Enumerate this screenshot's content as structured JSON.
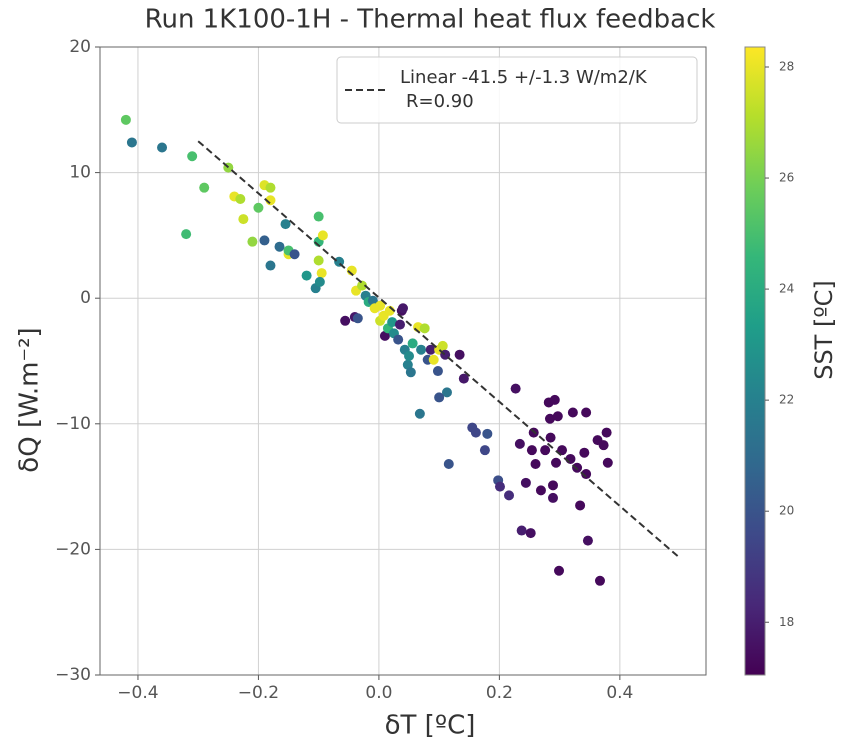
{
  "chart_data": {
    "type": "scatter",
    "title": "Run 1K100-1H - Thermal heat flux feedback",
    "x_label": "δT [ºC]",
    "y_label": "δQ [W.m⁻²]",
    "colorbar_label": "SST [ºC]",
    "grid": true,
    "legend": "upper right",
    "colormap": [
      "#440154",
      "#482878",
      "#3e4989",
      "#31688e",
      "#26828e",
      "#1f9e89",
      "#35b779",
      "#6ece58",
      "#b5de2b",
      "#fde725"
    ],
    "xlim": [
      -0.463,
      0.543
    ],
    "ylim": [
      -30,
      20
    ],
    "clim": [
      17.05,
      28.36
    ],
    "xticks": [
      {
        "value": -0.4,
        "label": "−0.4"
      },
      {
        "value": -0.2,
        "label": "−0.2"
      },
      {
        "value": 0,
        "label": "0.0"
      },
      0.2,
      0.4
    ],
    "yticks": [
      {
        "value": -30,
        "label": "−30"
      },
      {
        "value": -20,
        "label": "−20"
      },
      {
        "value": -10,
        "label": "−10"
      },
      0,
      10,
      20
    ],
    "cticks": [
      18,
      20,
      22,
      24,
      26,
      28
    ],
    "fit": {
      "label": [
        "Linear -41.5 +/-1.3 W/m2/K",
        "R=0.90"
      ],
      "color": "#333333",
      "x": [
        -0.3,
        0.5
      ],
      "y": [
        12.5,
        -20.7
      ]
    },
    "x": [
      -0.42,
      -0.41,
      -0.36,
      -0.31,
      -0.32,
      -0.29,
      -0.25,
      -0.24,
      -0.23,
      -0.225,
      -0.21,
      -0.2,
      -0.19,
      -0.18,
      -0.18,
      -0.19,
      -0.18,
      -0.165,
      -0.155,
      -0.15,
      -0.15,
      -0.14,
      -0.12,
      -0.1,
      -0.1,
      -0.1,
      -0.095,
      -0.093,
      -0.105,
      -0.098,
      -0.066,
      -0.056,
      -0.04,
      -0.045,
      -0.038,
      -0.035,
      -0.028,
      -0.022,
      -0.017,
      -0.01,
      -0.007,
      0.002,
      0.002,
      0.008,
      0.01,
      0.015,
      0.018,
      0.022,
      0.025,
      0.032,
      0.035,
      0.038,
      0.04,
      0.043,
      0.048,
      0.053,
      0.05,
      0.056,
      0.065,
      0.07,
      0.068,
      0.076,
      0.081,
      0.086,
      0.091,
      0.098,
      0.1,
      0.106,
      0.11,
      0.113,
      0.1,
      0.116,
      0.134,
      0.141,
      0.155,
      0.161,
      0.18,
      0.176,
      0.198,
      0.201,
      0.216,
      0.227,
      0.234,
      0.237,
      0.244,
      0.252,
      0.254,
      0.257,
      0.26,
      0.269,
      0.276,
      0.282,
      0.284,
      0.285,
      0.289,
      0.292,
      0.294,
      0.297,
      0.299,
      0.289,
      0.304,
      0.322,
      0.329,
      0.334,
      0.341,
      0.344,
      0.344,
      0.347,
      0.363,
      0.367,
      0.373,
      0.378,
      0.38,
      0.318
    ],
    "values": [
      14.2,
      12.4,
      12,
      11.3,
      5.1,
      8.8,
      10.4,
      8.1,
      7.9,
      6.3,
      4.5,
      7.2,
      9,
      8.8,
      7.8,
      4.6,
      2.6,
      4.1,
      5.9,
      3.5,
      3.8,
      3.5,
      1.8,
      4.5,
      6.5,
      3,
      2,
      5,
      0.8,
      1.3,
      2.9,
      -1.8,
      -1.5,
      2.2,
      0.6,
      -1.6,
      1,
      0.2,
      -0.3,
      -0.2,
      -0.8,
      -0.6,
      -1.8,
      -1.4,
      -3,
      -2.4,
      -1,
      -1.9,
      -2.8,
      -3.3,
      -2.1,
      -1,
      -0.8,
      -4.1,
      -5.3,
      -5.9,
      -4.6,
      -3.6,
      -2.3,
      -4.1,
      -9.2,
      -2.4,
      -4.9,
      -4.1,
      -4.9,
      -5.8,
      -4.1,
      -3.8,
      -4.5,
      -7.5,
      -7.9,
      -13.2,
      -4.5,
      -6.4,
      -10.3,
      -10.7,
      -10.8,
      -12.1,
      -14.5,
      -15,
      -15.7,
      -7.2,
      -11.6,
      -18.5,
      -14.7,
      -18.7,
      -12.1,
      -10.7,
      -13.2,
      -15.3,
      -12.1,
      -8.3,
      -9.6,
      -11.1,
      -14.9,
      -8.1,
      -13.1,
      -9.4,
      -21.7,
      -15.9,
      -12.1,
      -9.1,
      -13.5,
      -16.5,
      -12.3,
      -9.1,
      -14,
      -19.3,
      -11.3,
      -22.5,
      -11.7,
      -10.7,
      -13.1,
      -12.8
    ],
    "color_values": [
      25.5,
      21.5,
      21.5,
      25,
      24.8,
      25.5,
      26.5,
      28,
      27,
      27.5,
      26.5,
      25.5,
      27.8,
      27,
      28,
      20.5,
      21.5,
      21,
      22,
      28,
      25,
      20,
      23,
      24.5,
      25,
      27,
      28,
      28,
      22,
      22.5,
      22,
      17.5,
      17.8,
      28,
      28,
      20,
      27,
      22,
      24,
      21.5,
      28,
      28,
      27.5,
      28,
      17.5,
      24.5,
      28,
      23,
      22.5,
      20,
      18,
      17.5,
      17.8,
      22,
      22,
      21.5,
      22.5,
      24,
      28,
      22,
      21.5,
      27,
      20,
      18,
      28,
      20,
      28,
      27.5,
      18,
      21.5,
      20,
      20,
      17.5,
      17.8,
      19.5,
      19.5,
      20,
      19.5,
      19.8,
      18.5,
      18.5,
      17.5,
      17.5,
      18,
      17.5,
      17.5,
      17.3,
      17.3,
      17.3,
      17.3,
      17.3,
      17.3,
      17.3,
      17.3,
      17.3,
      17.3,
      17.3,
      17.3,
      17.3,
      17.5,
      17.3,
      17.3,
      17.3,
      17.3,
      17.3,
      17.3,
      17.3,
      17.5,
      17.3,
      17.3,
      17.3,
      17.3,
      17.3,
      17.3
    ]
  }
}
